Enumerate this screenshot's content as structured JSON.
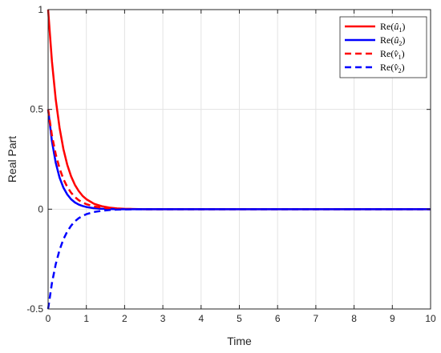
{
  "chart_data": {
    "type": "line",
    "title": "",
    "xlabel": "Time",
    "ylabel": "Real Part",
    "xlim": [
      0,
      10
    ],
    "ylim": [
      -0.5,
      1
    ],
    "xticks": [
      0,
      1,
      2,
      3,
      4,
      5,
      6,
      7,
      8,
      9,
      10
    ],
    "yticks": [
      -0.5,
      0,
      0.5,
      1
    ],
    "xtick_labels": [
      "0",
      "1",
      "2",
      "3",
      "4",
      "5",
      "6",
      "7",
      "8",
      "9",
      "10"
    ],
    "ytick_labels": [
      "-0.5",
      "0",
      "0.5",
      "1"
    ],
    "grid": true,
    "legend_position": "top-right",
    "x": [
      0,
      0.1,
      0.2,
      0.3,
      0.4,
      0.5,
      0.6,
      0.7,
      0.8,
      0.9,
      1.0,
      1.2,
      1.4,
      1.6,
      1.8,
      2.0,
      2.5,
      3,
      4,
      5,
      6,
      7,
      8,
      9,
      10
    ],
    "series": [
      {
        "legend": "Re(û₁)",
        "legend_base": "Re(",
        "legend_hat": "û",
        "legend_sub": "1",
        "legend_close": ")",
        "color": "#ff0000",
        "dash": "solid",
        "values": [
          1.0,
          0.741,
          0.549,
          0.407,
          0.301,
          0.223,
          0.165,
          0.122,
          0.091,
          0.067,
          0.05,
          0.027,
          0.015,
          0.008,
          0.004,
          0.002,
          0.0,
          0.0,
          0.0,
          0.0,
          0.0,
          0.0,
          0.0,
          0.0,
          0.0
        ]
      },
      {
        "legend": "Re(û₂)",
        "legend_base": "Re(",
        "legend_hat": "û",
        "legend_sub": "2",
        "legend_close": ")",
        "color": "#0000ff",
        "dash": "solid",
        "values": [
          0.5,
          0.341,
          0.232,
          0.158,
          0.108,
          0.074,
          0.05,
          0.034,
          0.023,
          0.016,
          0.011,
          0.005,
          0.002,
          0.001,
          0.0,
          0.0,
          0.0,
          0.0,
          0.0,
          0.0,
          0.0,
          0.0,
          0.0,
          0.0,
          0.0
        ]
      },
      {
        "legend": "Re(v̂₁)",
        "legend_base": "Re(",
        "legend_hat": "v̂",
        "legend_sub": "1",
        "legend_close": ")",
        "color": "#ff0000",
        "dash": "dashed",
        "values": [
          0.5,
          0.37,
          0.275,
          0.204,
          0.151,
          0.112,
          0.083,
          0.061,
          0.045,
          0.034,
          0.025,
          0.014,
          0.008,
          0.004,
          0.002,
          0.001,
          0.0,
          0.0,
          0.0,
          0.0,
          0.0,
          0.0,
          0.0,
          0.0,
          0.0
        ]
      },
      {
        "legend": "Re(v̂₂)",
        "legend_base": "Re(",
        "legend_hat": "v̂",
        "legend_sub": "2",
        "legend_close": ")",
        "color": "#0000ff",
        "dash": "dashed",
        "values": [
          -0.5,
          -0.37,
          -0.275,
          -0.204,
          -0.151,
          -0.112,
          -0.083,
          -0.061,
          -0.045,
          -0.034,
          -0.025,
          -0.014,
          -0.008,
          -0.004,
          -0.002,
          -0.001,
          0.0,
          0.0,
          0.0,
          0.0,
          0.0,
          0.0,
          0.0,
          0.0,
          0.0
        ]
      }
    ]
  }
}
